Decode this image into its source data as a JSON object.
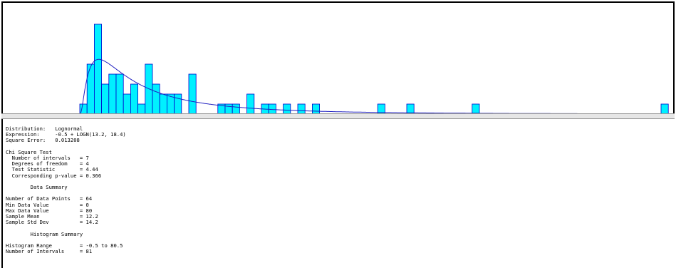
{
  "chart_data": {
    "type": "bar",
    "x_range": [
      -0.5,
      80.5
    ],
    "bin_width": 1,
    "bins": [
      {
        "x": 0,
        "count": 1
      },
      {
        "x": 1,
        "count": 5
      },
      {
        "x": 2,
        "count": 9
      },
      {
        "x": 3,
        "count": 3
      },
      {
        "x": 4,
        "count": 4
      },
      {
        "x": 5,
        "count": 4
      },
      {
        "x": 6,
        "count": 2
      },
      {
        "x": 7,
        "count": 3
      },
      {
        "x": 8,
        "count": 1
      },
      {
        "x": 9,
        "count": 5
      },
      {
        "x": 10,
        "count": 3
      },
      {
        "x": 11,
        "count": 2
      },
      {
        "x": 12,
        "count": 2
      },
      {
        "x": 13,
        "count": 2
      },
      {
        "x": 15,
        "count": 4
      },
      {
        "x": 19,
        "count": 1
      },
      {
        "x": 20,
        "count": 1
      },
      {
        "x": 21,
        "count": 1
      },
      {
        "x": 23,
        "count": 2
      },
      {
        "x": 25,
        "count": 1
      },
      {
        "x": 26,
        "count": 1
      },
      {
        "x": 28,
        "count": 1
      },
      {
        "x": 30,
        "count": 1
      },
      {
        "x": 32,
        "count": 1
      },
      {
        "x": 41,
        "count": 1
      },
      {
        "x": 45,
        "count": 1
      },
      {
        "x": 54,
        "count": 1
      },
      {
        "x": 80,
        "count": 1
      }
    ],
    "fit_curve": {
      "distribution": "Lognormal",
      "location": -0.5,
      "mean": 13.2,
      "std": 18.4,
      "x_end": 70
    },
    "colors": {
      "bar_fill": "#00f0ff",
      "bar_stroke": "#0000cc",
      "curve": "#2020c0",
      "baseline": "#000000"
    }
  },
  "report": {
    "distribution_line": "Distribution:   Lognormal",
    "expression_line": "Expression:     -0.5 + LOGN(13.2, 18.4)",
    "square_error_line": "Square Error:   0.013208",
    "chi_title": "Chi Square Test",
    "chi_intervals": "  Number of intervals   = 7",
    "chi_dof": "  Degrees of freedom    = 4",
    "chi_stat": "  Test Statistic        = 4.44",
    "chi_p": "  Corresponding p-value = 0.366",
    "data_summary_title": "        Data Summary",
    "ds_points": "Number of Data Points   = 64",
    "ds_min": "Min Data Value          = 0",
    "ds_max": "Max Data Value          = 80",
    "ds_mean": "Sample Mean             = 12.2",
    "ds_std": "Sample Std Dev          = 14.2",
    "hist_summary_title": "        Histogram Summary",
    "hs_range": "Histogram Range         = -0.5 to 80.5",
    "hs_intervals": "Number of Intervals     = 81"
  }
}
